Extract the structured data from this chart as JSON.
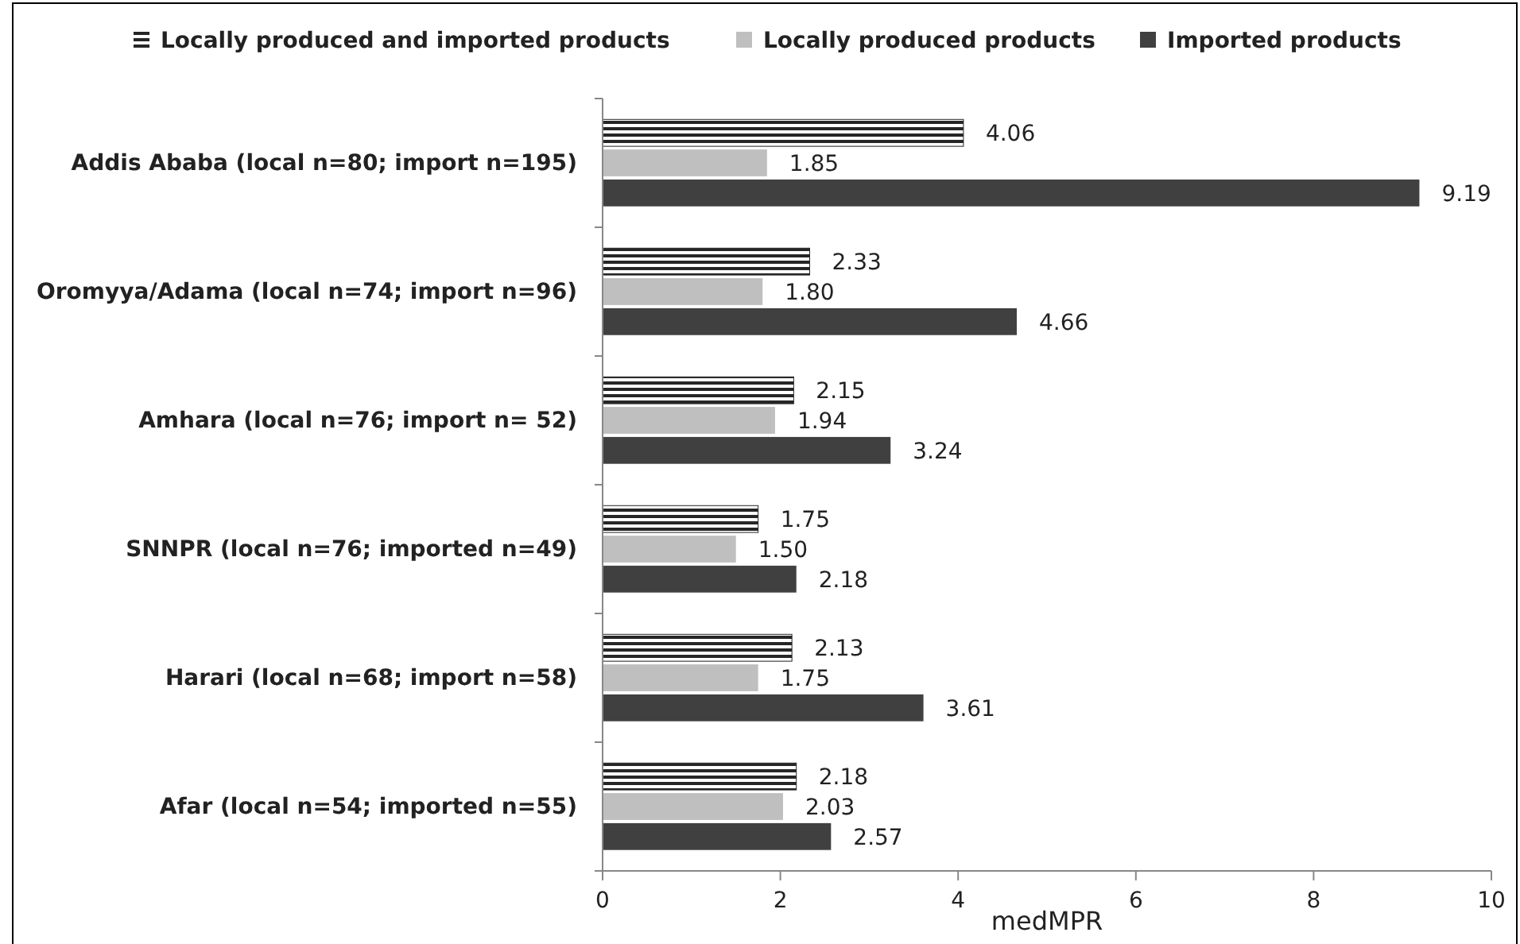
{
  "chart_data": {
    "type": "bar",
    "orientation": "horizontal",
    "xlabel": "medMPR",
    "categories": [
      "Addis Ababa (local n=80; import n=195)",
      "Oromyya/Adama (local n=74; import n=96)",
      "Amhara (local n=76; import n= 52)",
      "SNNPR (local n=76; imported n=49)",
      "Harari (local n=68; import n=58)",
      "Afar (local n=54; imported n=55)"
    ],
    "series": [
      {
        "name": "Locally produced and imported products",
        "color": "#262626",
        "values": [
          4.06,
          2.33,
          2.15,
          1.75,
          2.13,
          2.18
        ],
        "value_labels": [
          "4.06",
          "2.33",
          "2.15",
          "1.75",
          "2.13",
          "2.18"
        ]
      },
      {
        "name": "Locally produced products",
        "color": "#bfbfbf",
        "values": [
          1.85,
          1.8,
          1.94,
          1.5,
          1.75,
          2.03
        ],
        "value_labels": [
          "1.85",
          "1.80",
          "1.94",
          "1.50",
          "1.75",
          "2.03"
        ]
      },
      {
        "name": "Imported products",
        "color": "#404040",
        "values": [
          9.19,
          4.66,
          3.24,
          2.18,
          3.61,
          2.57
        ],
        "value_labels": [
          "9.19",
          "4.66",
          "3.24",
          "2.18",
          "3.61",
          "2.57"
        ]
      }
    ],
    "xlim": [
      0,
      10
    ],
    "xticks": [
      0,
      2,
      4,
      6,
      8,
      10
    ],
    "legend": "top",
    "grid": false
  }
}
